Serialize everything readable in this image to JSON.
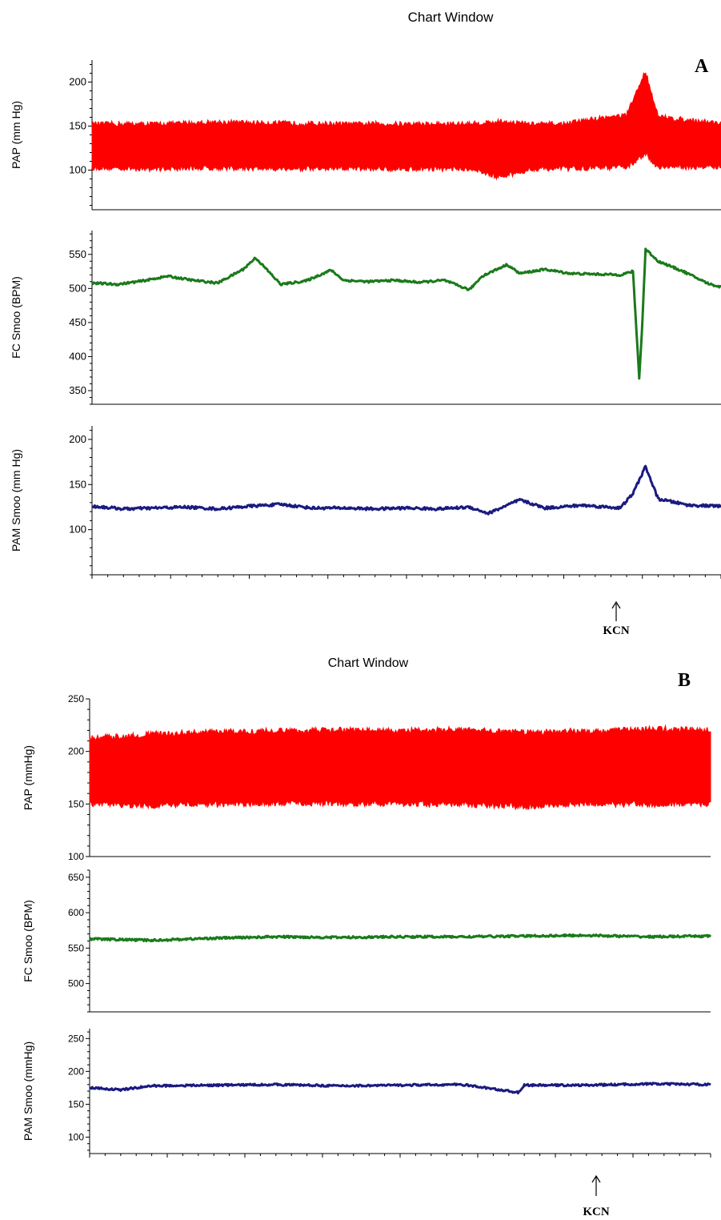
{
  "panels": [
    {
      "letter": "A",
      "window_title": "Chart Window",
      "annotation": {
        "label": "KCN"
      }
    },
    {
      "letter": "B",
      "window_title": "Chart Window",
      "annotation": {
        "label": "KCN"
      }
    }
  ],
  "colors": {
    "pap": "#ff0000",
    "fc": "#1a7a1a",
    "pam": "#1a1a80",
    "axis": "#000000"
  },
  "chart_data": [
    {
      "type": "line",
      "panel": "A",
      "title": "",
      "xlabel": "",
      "ylabel": "PAP (mm Hg)",
      "ylim": [
        55,
        225
      ],
      "yticks": [
        100,
        150,
        200
      ],
      "x": [
        0,
        0.1,
        0.2,
        0.3,
        0.4,
        0.5,
        0.6,
        0.65,
        0.7,
        0.75,
        0.8,
        0.85,
        0.88,
        0.9,
        1.0
      ],
      "series": [
        {
          "name": "systolic",
          "values": [
            152,
            152,
            154,
            153,
            152,
            152,
            152,
            155,
            152,
            152,
            158,
            162,
            212,
            160,
            153
          ]
        },
        {
          "name": "diastolic",
          "values": [
            103,
            102,
            103,
            102,
            102,
            102,
            102,
            92,
            102,
            102,
            103,
            104,
            118,
            104,
            104
          ]
        }
      ],
      "grid": false
    },
    {
      "type": "line",
      "panel": "A",
      "title": "",
      "xlabel": "",
      "ylabel": "FC Smoo (BPM)",
      "ylim": [
        330,
        585
      ],
      "yticks": [
        350,
        400,
        450,
        500,
        550
      ],
      "x": [
        0,
        0.04,
        0.08,
        0.12,
        0.16,
        0.2,
        0.24,
        0.26,
        0.3,
        0.34,
        0.38,
        0.4,
        0.44,
        0.48,
        0.52,
        0.56,
        0.6,
        0.62,
        0.66,
        0.68,
        0.72,
        0.76,
        0.8,
        0.84,
        0.86,
        0.87,
        0.875,
        0.88,
        0.9,
        0.94,
        0.98,
        1.0
      ],
      "values": [
        508,
        506,
        511,
        518,
        512,
        508,
        528,
        545,
        506,
        511,
        527,
        512,
        510,
        512,
        509,
        512,
        498,
        518,
        535,
        522,
        528,
        522,
        521,
        520,
        525,
        368,
        450,
        558,
        540,
        525,
        507,
        502
      ],
      "grid": false
    },
    {
      "type": "line",
      "panel": "A",
      "title": "",
      "xlabel": "",
      "ylabel": "PAM Smoo (mm Hg)",
      "ylim": [
        50,
        215
      ],
      "yticks": [
        100,
        150,
        200
      ],
      "x": [
        0,
        0.05,
        0.1,
        0.15,
        0.2,
        0.25,
        0.3,
        0.35,
        0.4,
        0.45,
        0.5,
        0.55,
        0.6,
        0.63,
        0.68,
        0.72,
        0.78,
        0.84,
        0.86,
        0.88,
        0.9,
        0.95,
        1.0
      ],
      "values": [
        126,
        123,
        124,
        125,
        123,
        126,
        128,
        124,
        124,
        123,
        124,
        123,
        125,
        118,
        133,
        124,
        127,
        124,
        140,
        170,
        134,
        127,
        126
      ],
      "grid": false
    },
    {
      "type": "line",
      "panel": "B",
      "title": "",
      "xlabel": "",
      "ylabel": "PAP (mmHg)",
      "ylim": [
        100,
        250
      ],
      "yticks": [
        100,
        150,
        200,
        250
      ],
      "x": [
        0,
        0.1,
        0.2,
        0.3,
        0.4,
        0.5,
        0.6,
        0.7,
        0.8,
        0.9,
        1.0
      ],
      "series": [
        {
          "name": "systolic",
          "values": [
            212,
            216,
            218,
            219,
            220,
            219,
            220,
            218,
            219,
            221,
            220
          ]
        },
        {
          "name": "diastolic",
          "values": [
            150,
            149,
            150,
            151,
            151,
            151,
            150,
            148,
            151,
            150,
            151
          ]
        }
      ],
      "grid": false
    },
    {
      "type": "line",
      "panel": "B",
      "title": "",
      "xlabel": "",
      "ylabel": "FC Smoo (BPM)",
      "ylim": [
        460,
        660
      ],
      "yticks": [
        500,
        550,
        600,
        650
      ],
      "x": [
        0,
        0.1,
        0.2,
        0.3,
        0.4,
        0.5,
        0.6,
        0.7,
        0.8,
        0.9,
        1.0
      ],
      "values": [
        563,
        561,
        564,
        566,
        565,
        566,
        566,
        567,
        568,
        566,
        567
      ],
      "grid": false
    },
    {
      "type": "line",
      "panel": "B",
      "title": "",
      "xlabel": "",
      "ylabel": "PAM Smoo (mmHg)",
      "ylim": [
        75,
        265
      ],
      "yticks": [
        100,
        150,
        200,
        250
      ],
      "x": [
        0,
        0.05,
        0.1,
        0.2,
        0.3,
        0.4,
        0.5,
        0.6,
        0.69,
        0.7,
        0.8,
        0.9,
        1.0
      ],
      "values": [
        175,
        172,
        178,
        179,
        180,
        178,
        179,
        180,
        168,
        179,
        179,
        181,
        180
      ],
      "grid": false
    }
  ]
}
